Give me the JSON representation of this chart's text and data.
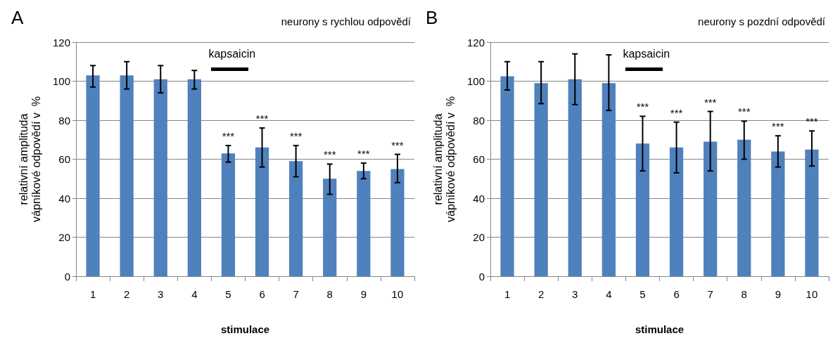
{
  "chart_data": [
    {
      "type": "bar",
      "title": "neurony s rychlou odpovědí",
      "xlabel": "stimulace",
      "ylabel": "relativní amplituda\nvápníkové odpovědí v  %",
      "categories": [
        "1",
        "2",
        "3",
        "4",
        "5",
        "6",
        "7",
        "8",
        "9",
        "10"
      ],
      "values": [
        103,
        103,
        101,
        101,
        63,
        66,
        59,
        50,
        54,
        55
      ],
      "color": "#4f81bd",
      "errors": [
        [
          97,
          108
        ],
        [
          96,
          110
        ],
        [
          94,
          108
        ],
        [
          96,
          105.5
        ],
        [
          58.5,
          67
        ],
        [
          56,
          76
        ],
        [
          51,
          67
        ],
        [
          42,
          57.5
        ],
        [
          50,
          58
        ],
        [
          48,
          62.5
        ]
      ],
      "ylim": [
        0,
        120
      ],
      "yticks": [
        0,
        20,
        40,
        60,
        80,
        100,
        120
      ],
      "grid": "y",
      "annotations": [
        "A",
        "kapsaicin",
        {
          "text": "***",
          "x": "5",
          "y": 67
        },
        {
          "text": "***",
          "x": "6",
          "y": 76
        },
        {
          "text": "***",
          "x": "7",
          "y": 67
        },
        {
          "text": "***",
          "x": "8",
          "y": 57.5
        },
        {
          "text": "***",
          "x": "9",
          "y": 58
        },
        {
          "text": "***",
          "x": "10",
          "y": 62.5
        }
      ]
    },
    {
      "type": "bar",
      "title": "neurony s pozdní odpovědí",
      "xlabel": "stimulace",
      "ylabel": "relativní amplituda\nvápníkové odpovědí v  %",
      "categories": [
        "1",
        "2",
        "3",
        "4",
        "5",
        "6",
        "7",
        "8",
        "9",
        "10"
      ],
      "values": [
        102.5,
        99,
        101,
        99,
        68,
        66,
        69,
        70,
        64,
        65
      ],
      "color": "#4f81bd",
      "errors": [
        [
          95.5,
          110
        ],
        [
          88.5,
          110
        ],
        [
          88,
          114
        ],
        [
          85,
          113.5
        ],
        [
          54,
          82
        ],
        [
          53,
          79
        ],
        [
          54,
          84.5
        ],
        [
          60,
          79.5
        ],
        [
          56,
          72
        ],
        [
          56.5,
          74.5
        ]
      ],
      "ylim": [
        0,
        120
      ],
      "yticks": [
        0,
        20,
        40,
        60,
        80,
        100,
        120
      ],
      "grid": "y",
      "annotations": [
        "B",
        "kapsaicin",
        {
          "text": "***",
          "x": "5",
          "y": 82
        },
        {
          "text": "***",
          "x": "6",
          "y": 79
        },
        {
          "text": "***",
          "x": "7",
          "y": 84.5
        },
        {
          "text": "***",
          "x": "8",
          "y": 79.5
        },
        {
          "text": "***",
          "x": "9",
          "y": 72
        },
        {
          "text": "***",
          "x": "10",
          "y": 74.5
        }
      ]
    }
  ]
}
